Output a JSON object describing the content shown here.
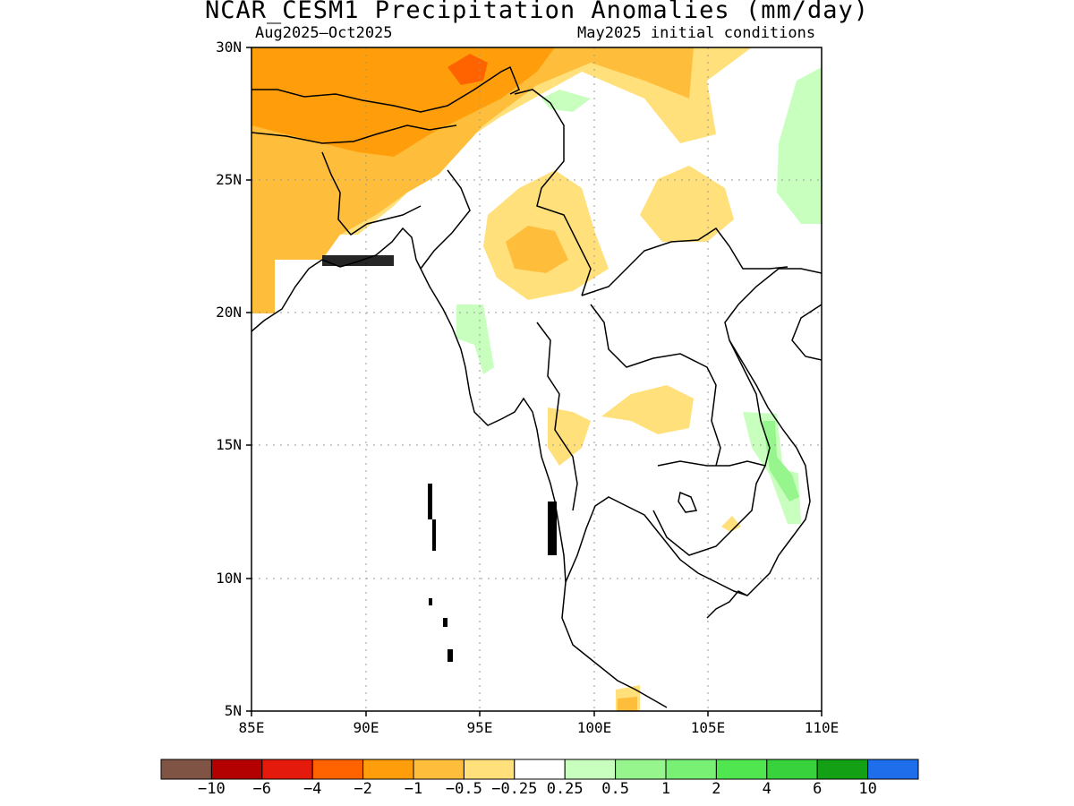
{
  "title": "NCAR_CESM1 Precipitation Anomalies (mm/day)",
  "subtitle_left": "Aug2025–Oct2025",
  "subtitle_right": "May2025 initial conditions",
  "lat_labels": [
    "30N",
    "25N",
    "20N",
    "15N",
    "10N",
    "5N"
  ],
  "lon_labels": [
    "85E",
    "90E",
    "95E",
    "100E",
    "105E",
    "110E"
  ],
  "map_extent": {
    "lon": [
      85,
      110
    ],
    "lat": [
      5,
      30
    ]
  },
  "colorbar": {
    "colors": [
      "#7f5445",
      "#b30000",
      "#e31a0c",
      "#ff6300",
      "#ff9e0a",
      "#ffbd3c",
      "#ffe07a",
      "#ffffff",
      "#c8ffbe",
      "#96f58c",
      "#78f073",
      "#50e650",
      "#37d23c",
      "#14a014",
      "#1e6eeb"
    ],
    "labels": [
      "-10",
      "-6",
      "-4",
      "-2",
      "-1",
      "-0.5",
      "-0.25",
      "0.25",
      "0.5",
      "1",
      "2",
      "4",
      "6",
      "10"
    ]
  },
  "colors": {
    "dry_light": "#ffe07a",
    "dry_mid": "#ffbd3c",
    "dry_strong": "#ff9e0a",
    "dry_max": "#ff6300",
    "wet_light": "#c8ffbe",
    "wet_mid": "#96f58c"
  }
}
